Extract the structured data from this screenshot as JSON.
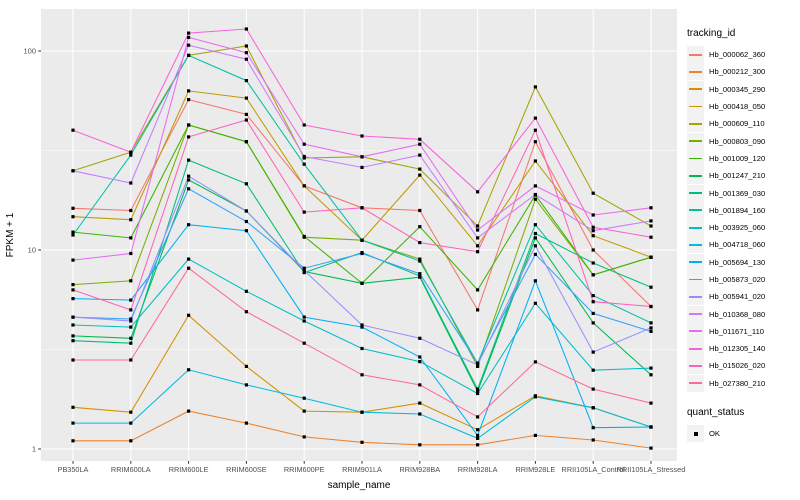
{
  "figure": {
    "kind": "ggplot2 line plot (expression profiles)",
    "panel_bg": "#EBEBEB",
    "grid_color": "#FFFFFF",
    "tick_text_color": "#4D4D4D",
    "legend_key_bg": "#F2F2F2",
    "point_color": "#000000"
  },
  "axes": {
    "x_title": "sample_name",
    "y_title": "FPKM + 1",
    "y_tick_labels": [
      "1",
      "10",
      "100"
    ],
    "y_tick_values": [
      1,
      10,
      100
    ],
    "y_minor_values": [
      3.1623,
      31.623
    ]
  },
  "legend": {
    "tracking_title": "tracking_id",
    "quant_title": "quant_status",
    "quant_items": [
      {
        "label": "OK",
        "marker": "black-square"
      }
    ]
  },
  "chart_data": {
    "type": "line",
    "title": "",
    "xlabel": "sample_name",
    "ylabel": "FPKM + 1",
    "y_scale": "log10",
    "ylim": [
      0.9,
      160
    ],
    "grid": true,
    "legend_position": "right",
    "point_marker": "small-black-square",
    "quant_status_all_points": "OK",
    "x": [
      "PB350LA",
      "RRIM600LA",
      "RRIM600LE",
      "RRIM600SE",
      "RRIM600PE",
      "RRIM901LA",
      "RRIM928BA",
      "RRIM928LA",
      "RRIM928LE",
      "RRII105LA_Control",
      "RRII105LA_Stressed"
    ],
    "series": [
      {
        "name": "Hb_000062_360",
        "color": "#F8766D",
        "values": [
          16.2,
          15.8,
          57,
          48,
          21,
          16.3,
          15.8,
          5.0,
          35,
          10.0,
          5.2
        ]
      },
      {
        "name": "Hb_000212_300",
        "color": "#EA8331",
        "values": [
          1.1,
          1.1,
          1.55,
          1.35,
          1.15,
          1.08,
          1.05,
          1.05,
          1.17,
          1.11,
          1.01
        ]
      },
      {
        "name": "Hb_000345_290",
        "color": "#D89000",
        "values": [
          1.62,
          1.53,
          4.7,
          2.6,
          1.55,
          1.53,
          1.7,
          1.25,
          1.85,
          1.61,
          1.29
        ]
      },
      {
        "name": "Hb_000418_050",
        "color": "#C09B00",
        "values": [
          14.7,
          14.2,
          63,
          58,
          21,
          11.2,
          23.8,
          10.5,
          28,
          11.8,
          9.2
        ]
      },
      {
        "name": "Hb_000609_110",
        "color": "#A3A500",
        "values": [
          25,
          31,
          95,
          106,
          29,
          29.4,
          25.5,
          13.2,
          66,
          19.3,
          13.2
        ]
      },
      {
        "name": "Hb_000803_090",
        "color": "#7CAE00",
        "values": [
          6.7,
          7.0,
          42.5,
          35,
          11.6,
          11.2,
          9.0,
          2.6,
          18,
          7.5,
          9.2
        ]
      },
      {
        "name": "Hb_001009_120",
        "color": "#39B600",
        "values": [
          12.3,
          11.5,
          42.5,
          35,
          11.7,
          6.8,
          13.1,
          6.3,
          18.9,
          7.5,
          9.2
        ]
      },
      {
        "name": "Hb_001247_210",
        "color": "#00BB4E",
        "values": [
          3.7,
          3.6,
          22.5,
          15.7,
          7.8,
          6.8,
          7.3,
          1.95,
          11.5,
          4.3,
          2.36
        ]
      },
      {
        "name": "Hb_001369_030",
        "color": "#00BF7D",
        "values": [
          3.5,
          3.4,
          28.3,
          21.5,
          7.7,
          9.7,
          7.4,
          2.0,
          12.1,
          8.6,
          6.5
        ]
      },
      {
        "name": "Hb_001894_160",
        "color": "#00C1A3",
        "values": [
          11.9,
          30,
          95,
          71,
          27,
          11.2,
          8.8,
          2.7,
          13.4,
          5.9,
          4.3
        ]
      },
      {
        "name": "Hb_003925_060",
        "color": "#00BFC4",
        "values": [
          4.2,
          4.1,
          9.0,
          6.2,
          4.4,
          3.2,
          2.75,
          1.9,
          5.4,
          2.49,
          2.55
        ]
      },
      {
        "name": "Hb_004718_060",
        "color": "#00BAE0",
        "values": [
          1.35,
          1.35,
          2.5,
          2.1,
          1.8,
          1.53,
          1.5,
          1.13,
          1.83,
          1.61,
          1.29
        ]
      },
      {
        "name": "Hb_005694_130",
        "color": "#00B0F6",
        "values": [
          5.7,
          5.6,
          13.4,
          12.5,
          4.6,
          4.1,
          2.9,
          1.17,
          7.0,
          1.28,
          1.29
        ]
      },
      {
        "name": "Hb_005873_020",
        "color": "#35A2FF",
        "values": [
          4.6,
          4.5,
          20.3,
          13.9,
          8.1,
          9.6,
          7.6,
          2.7,
          9.5,
          4.8,
          3.9
        ]
      },
      {
        "name": "Hb_005941_020",
        "color": "#9590FF",
        "values": [
          4.6,
          4.4,
          23.5,
          15.7,
          7.9,
          4.2,
          3.6,
          2.65,
          10.5,
          3.07,
          4.06
        ]
      },
      {
        "name": "Hb_010368_080",
        "color": "#C77CFF",
        "values": [
          25,
          21.7,
          107,
          91,
          29.5,
          26,
          30,
          11.5,
          19,
          12.5,
          14
        ]
      },
      {
        "name": "Hb_011671_110",
        "color": "#E76BF3",
        "values": [
          8.9,
          9.6,
          117,
          98,
          34,
          29.4,
          34,
          12.6,
          21,
          15.0,
          16.3
        ]
      },
      {
        "name": "Hb_012305_140",
        "color": "#FA62DB",
        "values": [
          40,
          31,
          123,
          129,
          42.5,
          37.4,
          36,
          19.6,
          46,
          13.0,
          11.6
        ]
      },
      {
        "name": "Hb_015026_020",
        "color": "#FF62BC",
        "values": [
          6.3,
          5.0,
          37,
          45,
          15.5,
          16.3,
          10.9,
          9.8,
          40,
          5.5,
          5.2
        ]
      },
      {
        "name": "Hb_027380_210",
        "color": "#FF6A98",
        "values": [
          2.8,
          2.8,
          8.1,
          4.9,
          3.4,
          2.36,
          2.1,
          1.45,
          2.74,
          2.0,
          1.7
        ]
      }
    ]
  }
}
